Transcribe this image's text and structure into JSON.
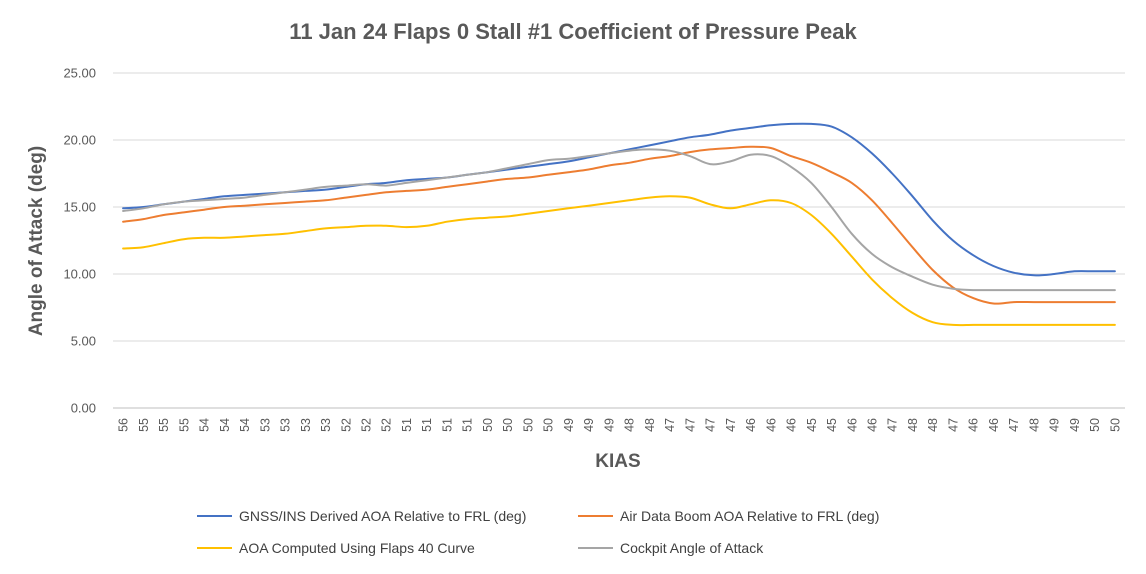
{
  "chart_data": {
    "type": "line",
    "title": "11 Jan 24 Flaps 0 Stall #1 Coefficient of Pressure Peak",
    "xlabel": "KIAS",
    "ylabel": "Angle of Attack (deg)",
    "ylim": [
      0,
      25
    ],
    "yticks": [
      "0.00",
      "5.00",
      "10.00",
      "15.00",
      "20.00",
      "25.00"
    ],
    "grid": true,
    "legend_position": "bottom",
    "categories": [
      "56",
      "55",
      "55",
      "55",
      "54",
      "54",
      "54",
      "53",
      "53",
      "53",
      "53",
      "52",
      "52",
      "52",
      "51",
      "51",
      "51",
      "51",
      "50",
      "50",
      "50",
      "50",
      "49",
      "49",
      "49",
      "48",
      "48",
      "47",
      "47",
      "47",
      "47",
      "46",
      "46",
      "46",
      "45",
      "45",
      "46",
      "46",
      "47",
      "48",
      "48",
      "47",
      "46",
      "46",
      "47",
      "48",
      "49",
      "49",
      "50",
      "50"
    ],
    "series": [
      {
        "name": "GNSS/INS Derived AOA Relative to FRL (deg)",
        "color": "#4472C4",
        "values": [
          14.9,
          15.0,
          15.2,
          15.4,
          15.6,
          15.8,
          15.9,
          16.0,
          16.1,
          16.2,
          16.3,
          16.5,
          16.7,
          16.8,
          17.0,
          17.1,
          17.2,
          17.4,
          17.6,
          17.8,
          18.0,
          18.2,
          18.4,
          18.7,
          19.0,
          19.3,
          19.6,
          19.9,
          20.2,
          20.4,
          20.7,
          20.9,
          21.1,
          21.2,
          21.2,
          21.0,
          20.2,
          19.0,
          17.5,
          15.8,
          14.0,
          12.5,
          11.4,
          10.6,
          10.1,
          9.9,
          10.0,
          10.2,
          10.2,
          10.2
        ]
      },
      {
        "name": "Air Data Boom AOA Relative to FRL (deg)",
        "color": "#ED7D31",
        "values": [
          13.9,
          14.1,
          14.4,
          14.6,
          14.8,
          15.0,
          15.1,
          15.2,
          15.3,
          15.4,
          15.5,
          15.7,
          15.9,
          16.1,
          16.2,
          16.3,
          16.5,
          16.7,
          16.9,
          17.1,
          17.2,
          17.4,
          17.6,
          17.8,
          18.1,
          18.3,
          18.6,
          18.8,
          19.1,
          19.3,
          19.4,
          19.5,
          19.4,
          18.8,
          18.3,
          17.6,
          16.8,
          15.5,
          13.8,
          12.0,
          10.3,
          9.0,
          8.2,
          7.8,
          7.9,
          7.9,
          7.9,
          7.9,
          7.9,
          7.9
        ]
      },
      {
        "name": "AOA Computed Using Flaps 40 Curve",
        "color": "#FFC000",
        "values": [
          11.9,
          12.0,
          12.3,
          12.6,
          12.7,
          12.7,
          12.8,
          12.9,
          13.0,
          13.2,
          13.4,
          13.5,
          13.6,
          13.6,
          13.5,
          13.6,
          13.9,
          14.1,
          14.2,
          14.3,
          14.5,
          14.7,
          14.9,
          15.1,
          15.3,
          15.5,
          15.7,
          15.8,
          15.7,
          15.2,
          14.9,
          15.2,
          15.5,
          15.3,
          14.4,
          13.0,
          11.3,
          9.6,
          8.2,
          7.1,
          6.4,
          6.2,
          6.2,
          6.2,
          6.2,
          6.2,
          6.2,
          6.2,
          6.2,
          6.2
        ]
      },
      {
        "name": "Cockpit Angle of Attack",
        "color": "#A5A5A5",
        "values": [
          14.7,
          14.9,
          15.2,
          15.4,
          15.5,
          15.6,
          15.7,
          15.9,
          16.1,
          16.3,
          16.5,
          16.6,
          16.7,
          16.6,
          16.8,
          17.0,
          17.2,
          17.4,
          17.6,
          17.9,
          18.2,
          18.5,
          18.6,
          18.8,
          19.0,
          19.2,
          19.3,
          19.2,
          18.8,
          18.2,
          18.4,
          18.9,
          18.8,
          18.0,
          16.8,
          15.0,
          13.0,
          11.5,
          10.5,
          9.8,
          9.2,
          8.9,
          8.8,
          8.8,
          8.8,
          8.8,
          8.8,
          8.8,
          8.8,
          8.8
        ]
      }
    ]
  }
}
